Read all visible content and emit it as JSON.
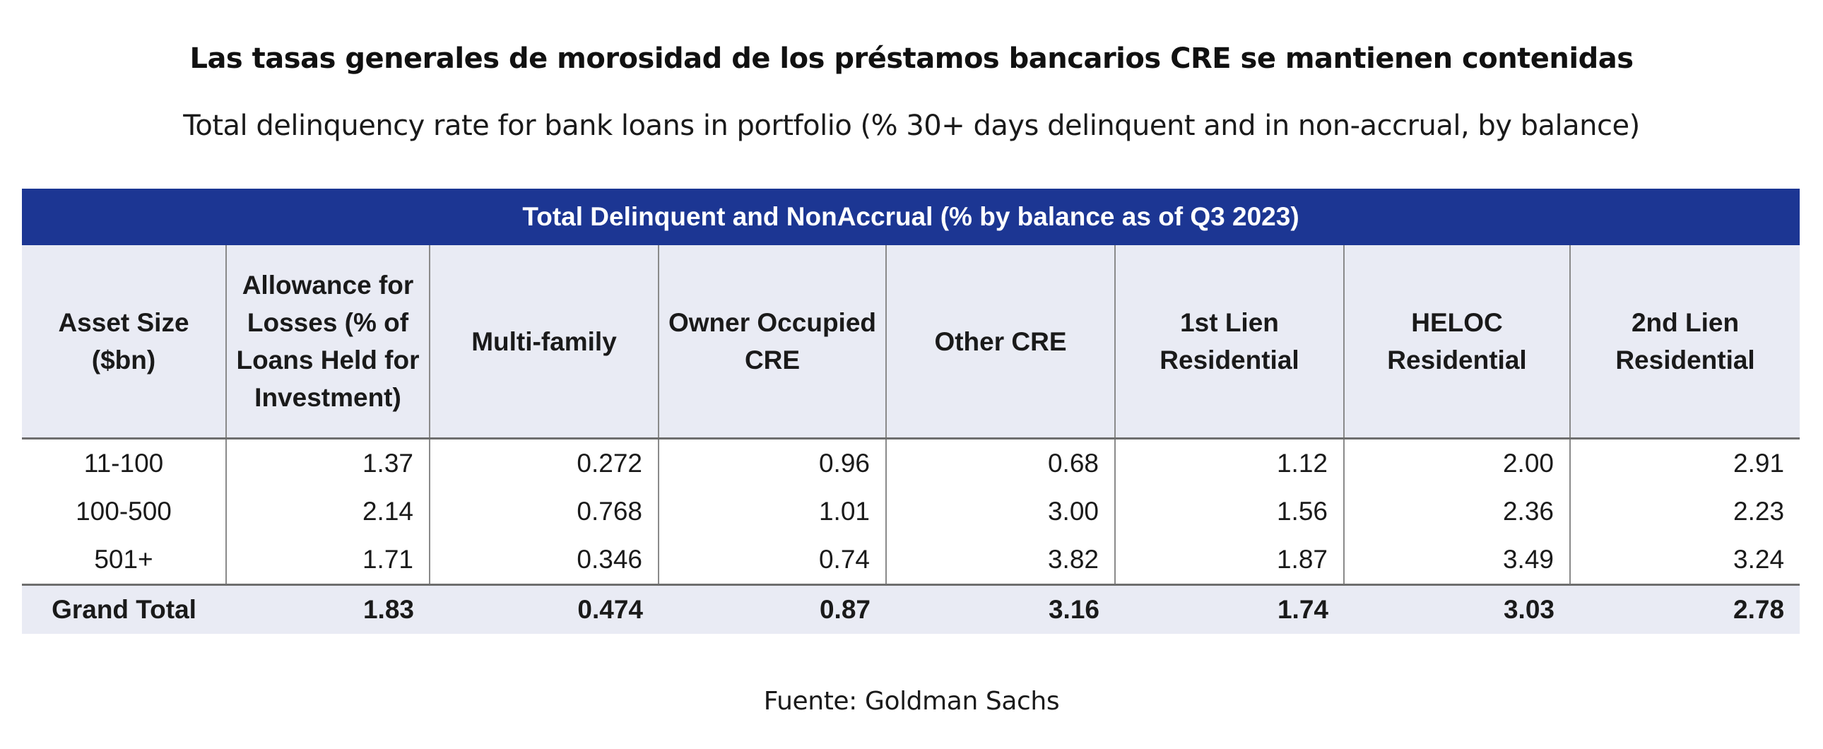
{
  "chart_data": {
    "type": "table",
    "title": "Las tasas generales de morosidad de los préstamos bancarios CRE se mantienen contenidas",
    "subtitle": "Total delinquency rate for bank loans in portfolio (% 30+ days delinquent and in non-accrual, by balance)",
    "banner": "Total Delinquent and NonAccrual (% by balance as of Q3 2023)",
    "columns": [
      "Asset Size ($bn)",
      "Allowance for Losses (% of Loans Held for Investment)",
      "Multi-family",
      "Owner Occupied CRE",
      "Other CRE",
      "1st Lien Residential",
      "HELOC Residential",
      "2nd Lien Residential"
    ],
    "rows": [
      [
        "11-100",
        "1.37",
        "0.272",
        "0.96",
        "0.68",
        "1.12",
        "2.00",
        "2.91"
      ],
      [
        "100-500",
        "2.14",
        "0.768",
        "1.01",
        "3.00",
        "1.56",
        "2.36",
        "2.23"
      ],
      [
        "501+",
        "1.71",
        "0.346",
        "0.74",
        "3.82",
        "1.87",
        "3.49",
        "3.24"
      ]
    ],
    "total_row": [
      "Grand Total",
      "1.83",
      "0.474",
      "0.87",
      "3.16",
      "1.74",
      "3.03",
      "2.78"
    ],
    "source": "Fuente: Goldman Sachs",
    "colors": {
      "banner_bg": "#1c3693",
      "header_bg": "#e9ebf4",
      "total_bg": "#e9ebf4"
    }
  }
}
